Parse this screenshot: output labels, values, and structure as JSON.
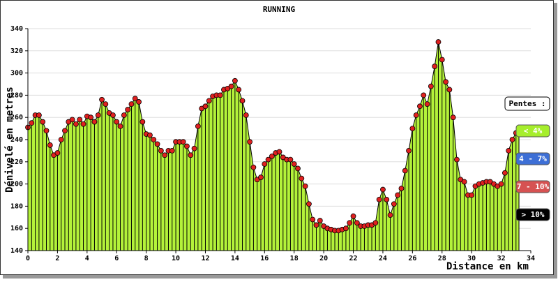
{
  "chart_data": {
    "type": "area",
    "title": "RUNNING",
    "x_label": "Distance en km",
    "y_label": "Dénivelé en metres",
    "xlim": [
      0,
      34
    ],
    "ylim": [
      140,
      340
    ],
    "xticks": [
      0,
      2,
      4,
      6,
      8,
      10,
      12,
      14,
      16,
      18,
      20,
      22,
      24,
      26,
      28,
      30,
      32,
      34
    ],
    "yticks": [
      140,
      160,
      180,
      200,
      220,
      240,
      260,
      280,
      300,
      320,
      340
    ],
    "grid": true,
    "fill_color": "#b4f23a",
    "marker_color": "#e02020",
    "x": [
      0,
      0.25,
      0.5,
      0.75,
      1,
      1.25,
      1.5,
      1.75,
      2,
      2.25,
      2.5,
      2.75,
      3,
      3.25,
      3.5,
      3.75,
      4,
      4.25,
      4.5,
      4.75,
      5,
      5.25,
      5.5,
      5.75,
      6,
      6.25,
      6.5,
      6.75,
      7,
      7.25,
      7.5,
      7.75,
      8,
      8.25,
      8.5,
      8.75,
      9,
      9.25,
      9.5,
      9.75,
      10,
      10.25,
      10.5,
      10.75,
      11,
      11.25,
      11.5,
      11.75,
      12,
      12.25,
      12.5,
      12.75,
      13,
      13.25,
      13.5,
      13.75,
      14,
      14.25,
      14.5,
      14.75,
      15,
      15.25,
      15.5,
      15.75,
      16,
      16.25,
      16.5,
      16.75,
      17,
      17.25,
      17.5,
      17.75,
      18,
      18.25,
      18.5,
      18.75,
      19,
      19.25,
      19.5,
      19.75,
      20,
      20.25,
      20.5,
      20.75,
      21,
      21.25,
      21.5,
      21.75,
      22,
      22.25,
      22.5,
      22.75,
      23,
      23.25,
      23.5,
      23.75,
      24,
      24.25,
      24.5,
      24.75,
      25,
      25.25,
      25.5,
      25.75,
      26,
      26.25,
      26.5,
      26.75,
      27,
      27.25,
      27.5,
      27.75,
      28,
      28.25,
      28.5,
      28.75,
      29,
      29.25,
      29.5,
      29.75,
      30,
      30.25,
      30.5,
      30.75,
      31,
      31.25,
      31.5,
      31.75,
      32,
      32.25,
      32.5,
      32.75,
      33,
      33.2
    ],
    "values": [
      251,
      255,
      262,
      262,
      256,
      248,
      235,
      226,
      228,
      240,
      248,
      256,
      258,
      254,
      258,
      254,
      261,
      260,
      256,
      262,
      276,
      272,
      264,
      262,
      256,
      252,
      262,
      267,
      272,
      277,
      274,
      256,
      245,
      244,
      240,
      236,
      230,
      226,
      230,
      230,
      238,
      238,
      238,
      234,
      226,
      232,
      252,
      268,
      270,
      275,
      279,
      280,
      280,
      285,
      286,
      288,
      293,
      285,
      275,
      262,
      238,
      215,
      204,
      206,
      218,
      222,
      225,
      228,
      229,
      224,
      222,
      222,
      218,
      214,
      205,
      198,
      182,
      168,
      163,
      167,
      162,
      160,
      159,
      158,
      158,
      159,
      160,
      165,
      171,
      165,
      162,
      162,
      163,
      163,
      165,
      186,
      195,
      186,
      172,
      182,
      190,
      196,
      212,
      230,
      250,
      262,
      270,
      280,
      272,
      288,
      306,
      328,
      312,
      292,
      285,
      260,
      222,
      204,
      202,
      190,
      190,
      198,
      200,
      201,
      202,
      202,
      200,
      198,
      200,
      210,
      230,
      240,
      246,
      251
    ],
    "slope_legend": {
      "title": "Pentes :",
      "items": [
        {
          "label": "< 4%",
          "color": "#a6ee2c"
        },
        {
          "label": "4 - 7%",
          "color": "#3d6fd6"
        },
        {
          "label": "7 - 10%",
          "color": "#d65252"
        },
        {
          "label": "> 10%",
          "color": "#000000"
        }
      ]
    }
  }
}
